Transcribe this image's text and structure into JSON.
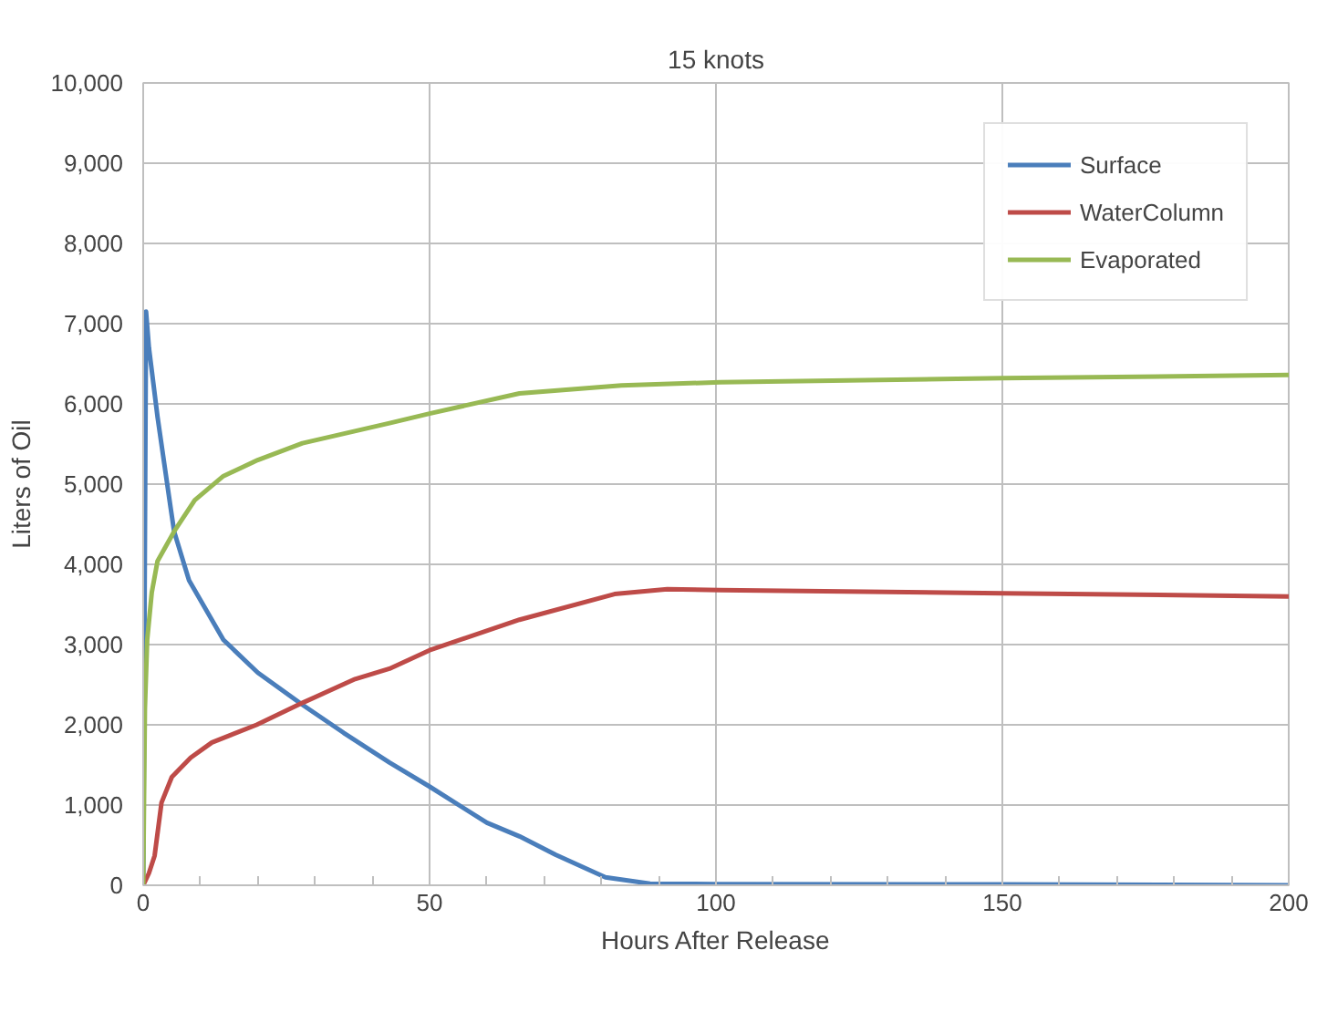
{
  "chart_data": {
    "type": "line",
    "title": "15 knots",
    "xlabel": "Hours After Release",
    "ylabel": "Liters of Oil",
    "xlim": [
      0,
      200
    ],
    "ylim": [
      0,
      10000
    ],
    "xticks": [
      0,
      {
        "value": 10,
        "label": null
      },
      {
        "value": 20,
        "label": null
      },
      {
        "value": 30,
        "label": null
      },
      {
        "value": 40,
        "label": null
      },
      50,
      {
        "value": 60,
        "label": null
      },
      {
        "value": 70,
        "label": null
      },
      {
        "value": 80,
        "label": null
      },
      {
        "value": 90,
        "label": null
      },
      100,
      {
        "value": 110,
        "label": null
      },
      {
        "value": 120,
        "label": null
      },
      {
        "value": 130,
        "label": null
      },
      {
        "value": 140,
        "label": null
      },
      150,
      {
        "value": 160,
        "label": null
      },
      {
        "value": 170,
        "label": null
      },
      {
        "value": 180,
        "label": null
      },
      {
        "value": 190,
        "label": null
      },
      200
    ],
    "yticks": [
      0,
      {
        "value": 1000,
        "label": "1,000"
      },
      {
        "value": 2000,
        "label": "2,000"
      },
      {
        "value": 3000,
        "label": "3,000"
      },
      {
        "value": 4000,
        "label": "4,000"
      },
      {
        "value": 5000,
        "label": "5,000"
      },
      {
        "value": 6000,
        "label": "6,000"
      },
      {
        "value": 7000,
        "label": "7,000"
      },
      {
        "value": 8000,
        "label": "8,000"
      },
      {
        "value": 9000,
        "label": "9,000"
      },
      {
        "value": 10000,
        "label": "10,000"
      }
    ],
    "grid": true,
    "legend": "top right",
    "marker": "none",
    "line_style": "solid",
    "series": [
      {
        "name": "Surface",
        "color": "#4a7ebb",
        "x": [
          0,
          0.5,
          1,
          2.5,
          4.8,
          5.4,
          8,
          14,
          20,
          27.8,
          35,
          43,
          50,
          60,
          65.7,
          72,
          80.7,
          88.5,
          100,
          150,
          200
        ],
        "values": [
          0,
          7150,
          6700,
          5840,
          4700,
          4410,
          3800,
          3060,
          2650,
          2250,
          1900,
          1530,
          1230,
          780,
          610,
          380,
          100,
          20,
          15,
          10,
          0
        ]
      },
      {
        "name": "WaterColumn",
        "color": "#be4b48",
        "x": [
          0,
          1,
          2,
          3.2,
          5,
          8.3,
          12,
          19.8,
          28,
          37,
          43,
          50,
          65.7,
          82.3,
          91.5,
          100.7,
          150,
          200
        ],
        "values": [
          0,
          150,
          370,
          1030,
          1350,
          1590,
          1780,
          2000,
          2280,
          2570,
          2700,
          2930,
          3310,
          3630,
          3690,
          3680,
          3640,
          3600
        ]
      },
      {
        "name": "Evaporated",
        "color": "#98b954",
        "x": [
          0,
          0.3,
          0.7,
          1.5,
          2.5,
          5.4,
          9,
          14,
          20,
          27.8,
          43,
          50,
          65.7,
          83.5,
          100.7,
          150,
          200
        ],
        "values": [
          0,
          2200,
          3060,
          3650,
          4040,
          4410,
          4800,
          5100,
          5300,
          5510,
          5760,
          5880,
          6130,
          6230,
          6270,
          6320,
          6360
        ]
      }
    ]
  }
}
